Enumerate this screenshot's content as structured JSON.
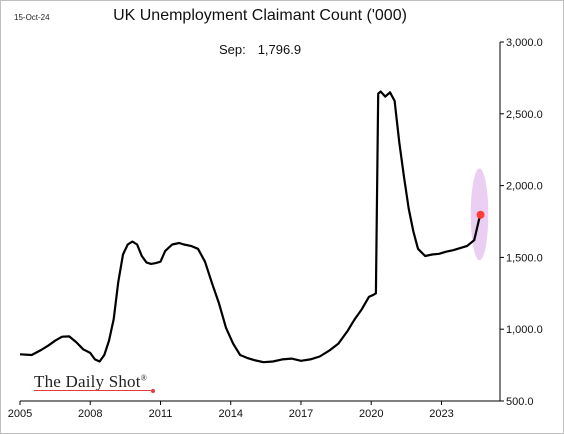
{
  "header": {
    "date": "15-Oct-24",
    "title": "UK Unemployment Claimant Count ('000)",
    "latest_label": "Sep:",
    "latest_value": "1,796.9"
  },
  "brand": {
    "name": "The Daily Shot",
    "mark": "®"
  },
  "colors": {
    "line": "#000000",
    "highlight_point": "#ff3b3b",
    "highlight_fill": "#e7c7f1",
    "axis": "#000000"
  },
  "chart_data": {
    "type": "line",
    "title": "UK Unemployment Claimant Count ('000)",
    "xlabel": "",
    "ylabel": "",
    "xlim": [
      2005,
      2025.5
    ],
    "ylim": [
      500,
      3000
    ],
    "x_ticks": [
      2005,
      2008,
      2011,
      2014,
      2017,
      2020,
      2023
    ],
    "x_tick_labels": [
      "2005",
      "2008",
      "2011",
      "2014",
      "2017",
      "2020",
      "2023"
    ],
    "y_ticks": [
      500,
      1000,
      1500,
      2000,
      2500,
      3000
    ],
    "y_tick_labels": [
      "500.0",
      "1,000.0",
      "1,500.0",
      "2,000.0",
      "2,500.0",
      "3,000.0"
    ],
    "y_axis_side": "right",
    "grid": false,
    "legend": "none",
    "annotation": {
      "text": "Sep: 1,796.9",
      "x": 2024.67,
      "y": 1796.9
    },
    "highlight_region": {
      "x": [
        2024.25,
        2025.0
      ],
      "y": [
        1480,
        2120
      ]
    },
    "series": [
      {
        "x": [
          2005.0,
          2005.5,
          2005.9,
          2006.2,
          2006.5,
          2006.8,
          2007.1,
          2007.4,
          2007.7,
          2008.0,
          2008.2,
          2008.4,
          2008.6,
          2008.8,
          2009.0,
          2009.2,
          2009.4,
          2009.6,
          2009.8,
          2010.0,
          2010.2,
          2010.4,
          2010.6,
          2010.8,
          2011.0,
          2011.2,
          2011.5,
          2011.8,
          2012.0,
          2012.3,
          2012.6,
          2012.9,
          2013.2,
          2013.5,
          2013.8,
          2014.1,
          2014.4,
          2014.7,
          2015.0,
          2015.4,
          2015.8,
          2016.2,
          2016.6,
          2017.0,
          2017.4,
          2017.8,
          2018.2,
          2018.6,
          2019.0,
          2019.3,
          2019.6,
          2019.9,
          2020.1,
          2020.2,
          2020.3,
          2020.4,
          2020.6,
          2020.8,
          2021.0,
          2021.2,
          2021.4,
          2021.6,
          2021.8,
          2022.0,
          2022.3,
          2022.6,
          2022.9,
          2023.2,
          2023.5,
          2023.8,
          2024.1,
          2024.4,
          2024.6,
          2024.67
        ],
        "y": [
          825,
          820,
          855,
          885,
          920,
          948,
          950,
          910,
          860,
          835,
          790,
          775,
          820,
          920,
          1070,
          1330,
          1520,
          1590,
          1610,
          1590,
          1510,
          1465,
          1455,
          1460,
          1470,
          1545,
          1590,
          1600,
          1590,
          1580,
          1560,
          1470,
          1320,
          1180,
          1010,
          900,
          820,
          800,
          785,
          770,
          775,
          790,
          795,
          780,
          790,
          810,
          850,
          900,
          990,
          1070,
          1140,
          1225,
          1240,
          1250,
          2640,
          2655,
          2620,
          2650,
          2590,
          2300,
          2060,
          1840,
          1680,
          1560,
          1510,
          1520,
          1525,
          1540,
          1550,
          1565,
          1580,
          1620,
          1760,
          1796.9
        ]
      }
    ]
  }
}
